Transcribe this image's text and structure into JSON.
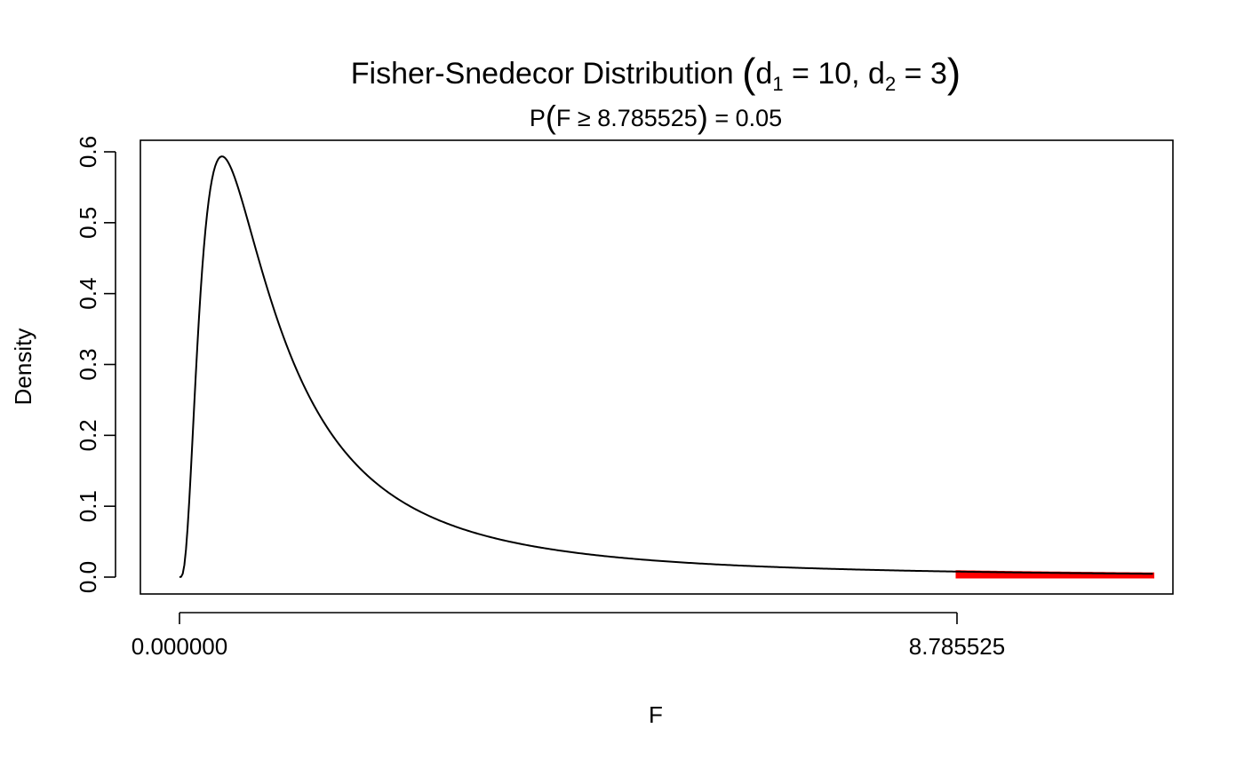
{
  "chart_data": {
    "type": "line",
    "title": {
      "prefix": "Fisher-Snedecor Distribution ",
      "d1_symbol": "d",
      "d1_sub": "1",
      "d1_rest": " = 10, ",
      "d2_symbol": "d",
      "d2_sub": "2",
      "d2_rest": " = 3"
    },
    "subtitle": {
      "prefix": "P",
      "inner": "F ≥ 8.785525",
      "suffix": " = 0.05"
    },
    "xlabel": "F",
    "ylabel": "Density",
    "distribution": {
      "family": "F",
      "df1": 10,
      "df2": 3
    },
    "critical_value": 8.785525,
    "tail_probability": 0.05,
    "xlim": [
      0,
      11.05
    ],
    "ylim": [
      0,
      0.6
    ],
    "x_ticks": [
      {
        "value": 0,
        "label": "0.000000"
      },
      {
        "value": 8.785525,
        "label": "8.785525"
      }
    ],
    "y_ticks": [
      {
        "value": 0.0,
        "label": "0.0"
      },
      {
        "value": 0.1,
        "label": "0.1"
      },
      {
        "value": 0.2,
        "label": "0.2"
      },
      {
        "value": 0.3,
        "label": "0.3"
      },
      {
        "value": 0.4,
        "label": "0.4"
      },
      {
        "value": 0.5,
        "label": "0.5"
      },
      {
        "value": 0.6,
        "label": "0.6"
      }
    ],
    "series": [
      {
        "x": [
          0,
          0.02,
          0.05,
          0.1,
          0.15,
          0.2,
          0.25,
          0.3,
          0.35,
          0.4,
          0.45,
          0.5,
          0.55,
          0.6,
          0.7,
          0.8,
          0.9,
          1.0,
          1.2,
          1.4,
          1.6,
          1.8,
          2.0,
          2.5,
          3.0,
          3.5,
          4.0,
          4.5,
          5.0,
          5.5,
          6.0,
          6.5,
          7.0,
          7.5,
          8.0,
          8.5,
          9.0,
          9.5,
          10.0,
          10.5,
          11.0
        ],
        "y": [
          0,
          6e-05,
          0.0078,
          0.078,
          0.205,
          0.342,
          0.452,
          0.533,
          0.575,
          0.593,
          0.594,
          0.579,
          0.555,
          0.526,
          0.462,
          0.402,
          0.349,
          0.302,
          0.229,
          0.177,
          0.14,
          0.113,
          0.092,
          0.059,
          0.04,
          0.028,
          0.021,
          0.016,
          0.0125,
          0.01,
          0.0081,
          0.0067,
          0.0056,
          0.0047,
          0.004,
          0.0035,
          0.003,
          0.0026,
          0.0023,
          0.002,
          0.0018
        ],
        "color": "#000000"
      }
    ],
    "shaded_region": {
      "from": 8.785525,
      "to": 11.0,
      "color": "#ff0000"
    },
    "grid": false,
    "legend": "none"
  }
}
